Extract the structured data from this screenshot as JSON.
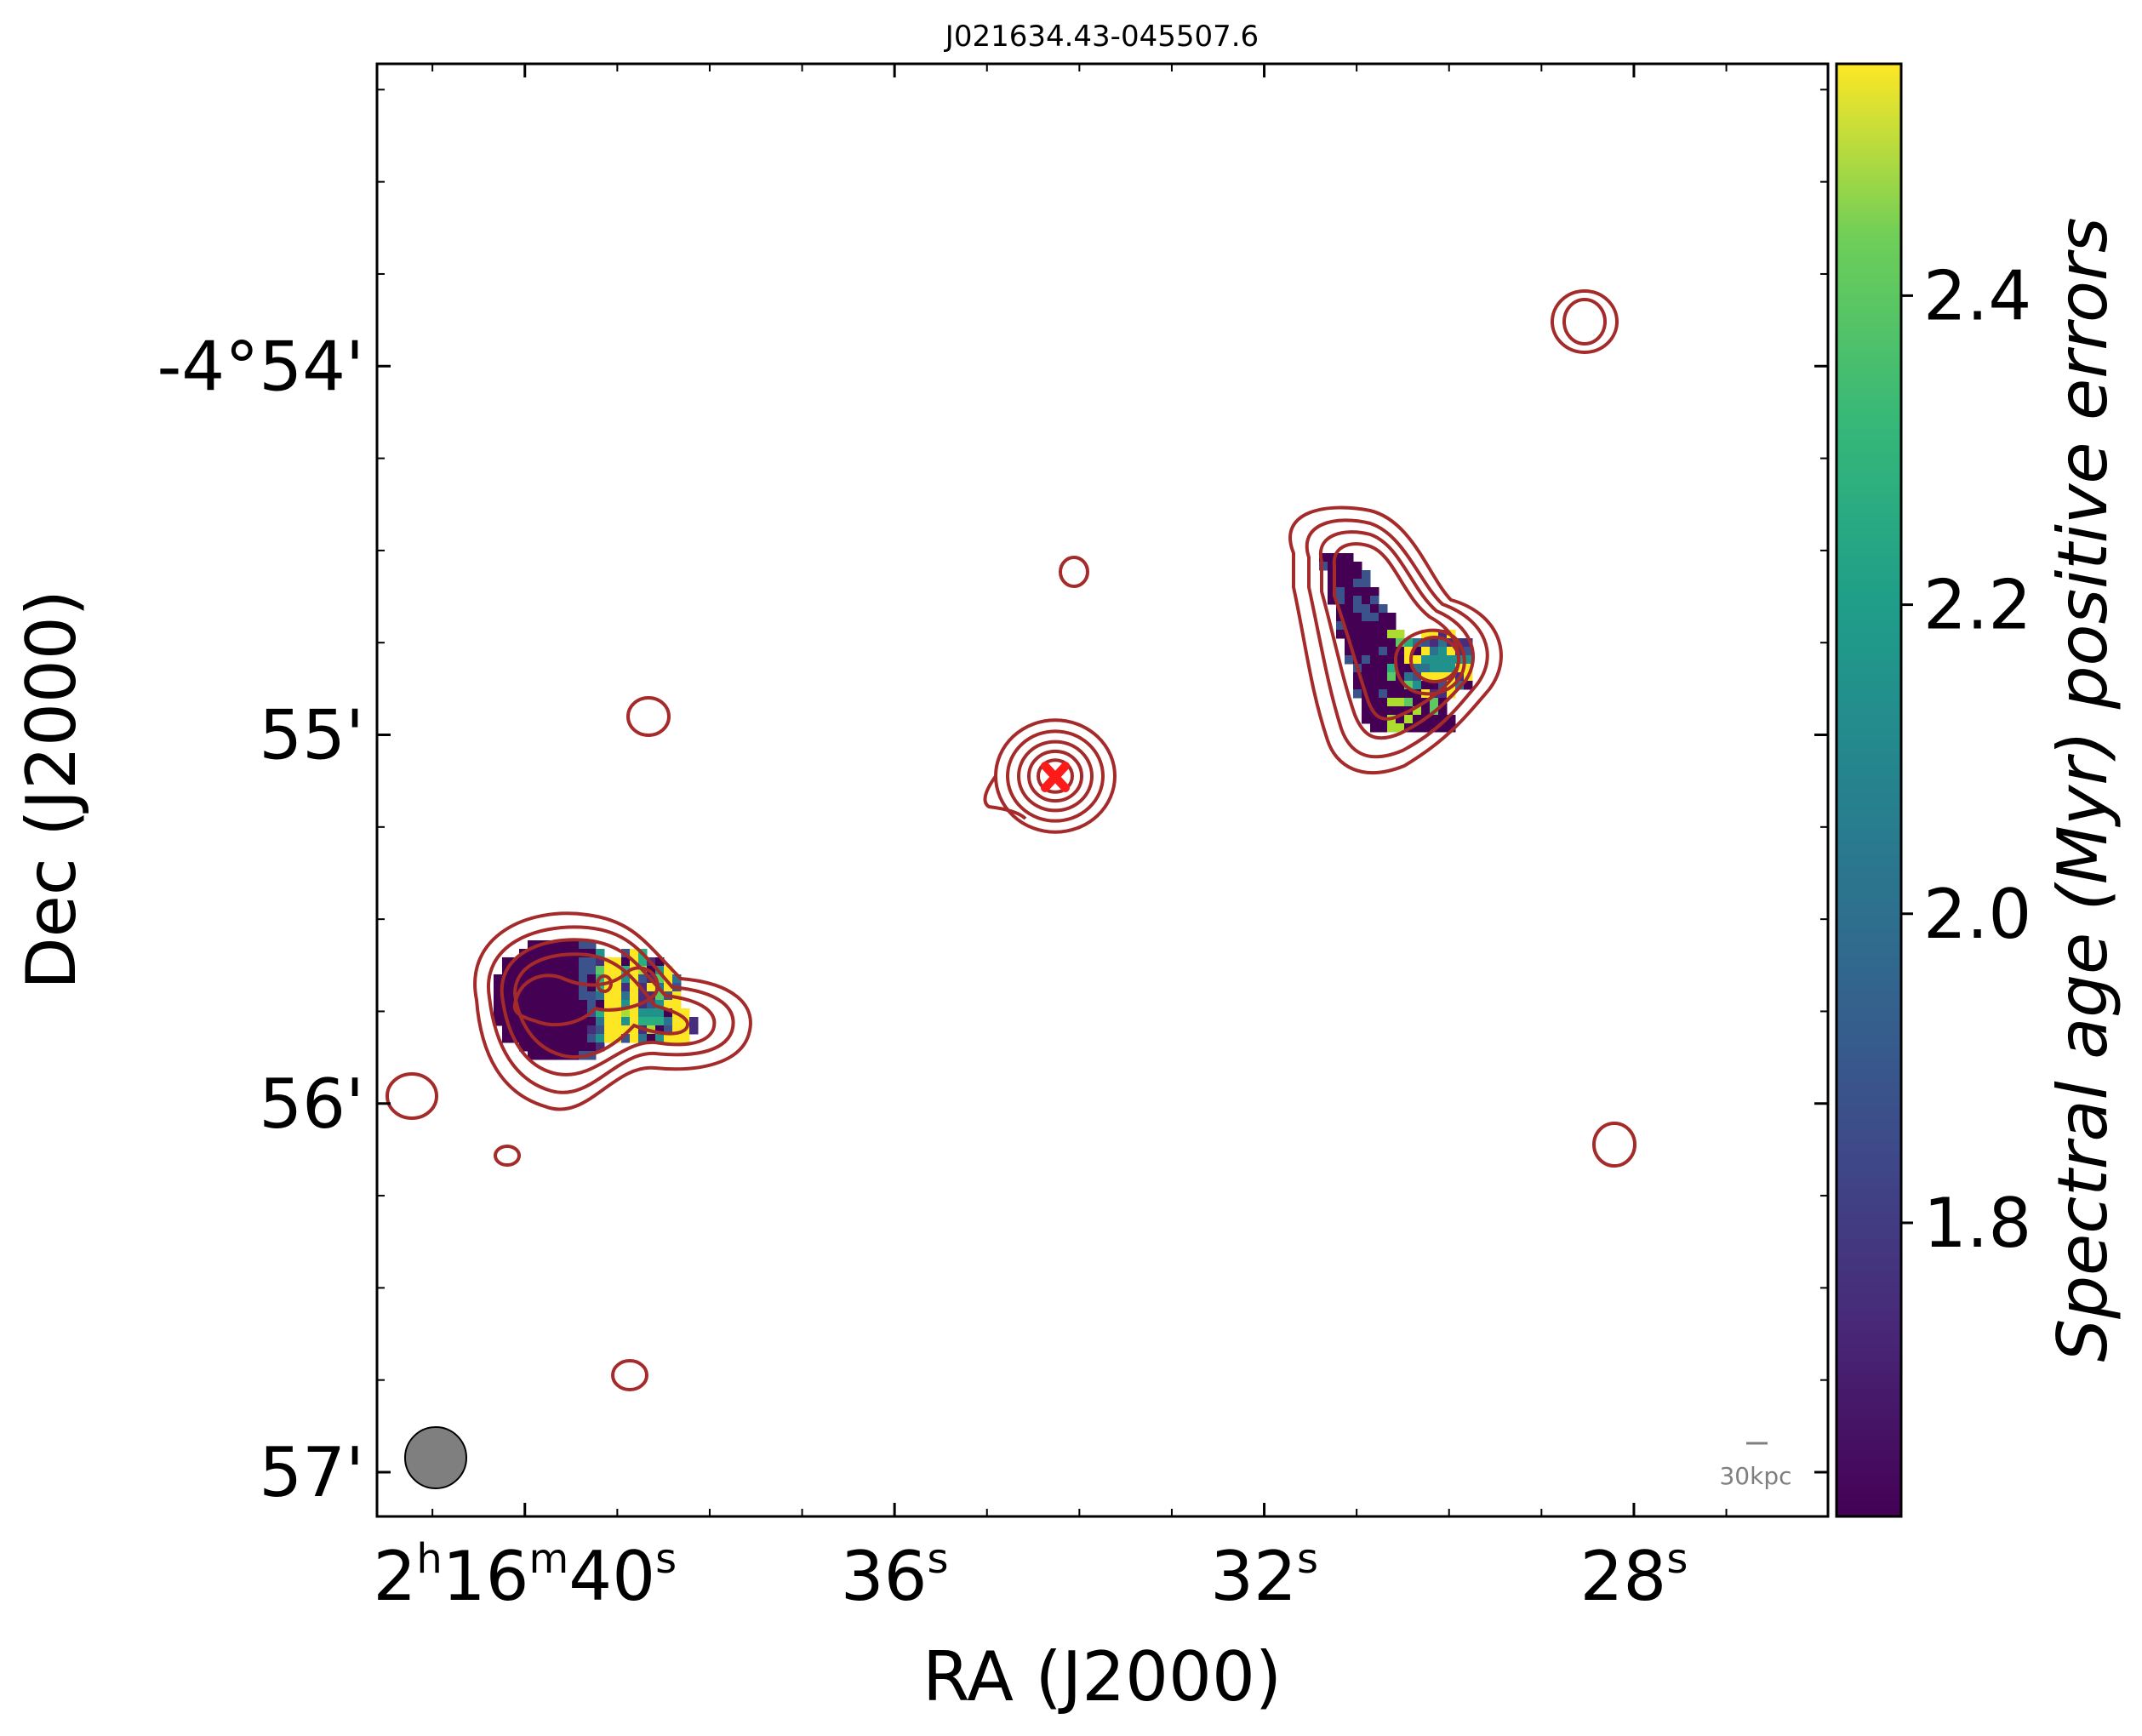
{
  "chart_data": {
    "type": "heatmap",
    "title": "J021634.43-045507.6",
    "xlabel": "RA (J2000)",
    "ylabel": "Dec (J2000)",
    "x_ticks": [
      {
        "value": 40,
        "label": [
          "2",
          "h",
          "16",
          "m",
          "40",
          "s"
        ]
      },
      {
        "value": 36,
        "label": [
          "36",
          "s"
        ]
      },
      {
        "value": 32,
        "label": [
          "32",
          "s"
        ]
      },
      {
        "value": 28,
        "label": [
          "28",
          "s"
        ]
      }
    ],
    "y_ticks": [
      {
        "value": -54,
        "label": "-4°54'"
      },
      {
        "value": -55,
        "label": "55'"
      },
      {
        "value": -56,
        "label": "56'"
      },
      {
        "value": -57,
        "label": "57'"
      }
    ],
    "xlim_seconds": [
      41.6,
      25.9
    ],
    "ylim_arcmin": [
      -57.12,
      -53.18
    ],
    "colorbar": {
      "label": "Spectral age (Myr) positive errors",
      "colormap": "viridis",
      "range": [
        1.61,
        2.55
      ],
      "ticks": [
        "1.8",
        "2.0",
        "2.2",
        "2.4"
      ],
      "tick_values": [
        1.8,
        2.0,
        2.2,
        2.4
      ]
    },
    "annotations": {
      "scale_bar": "30kpc",
      "core_marker": "red-x",
      "beam": "grey-circle"
    },
    "contour_color": "#a52a2a",
    "marker_color": "#ff1a1a"
  }
}
